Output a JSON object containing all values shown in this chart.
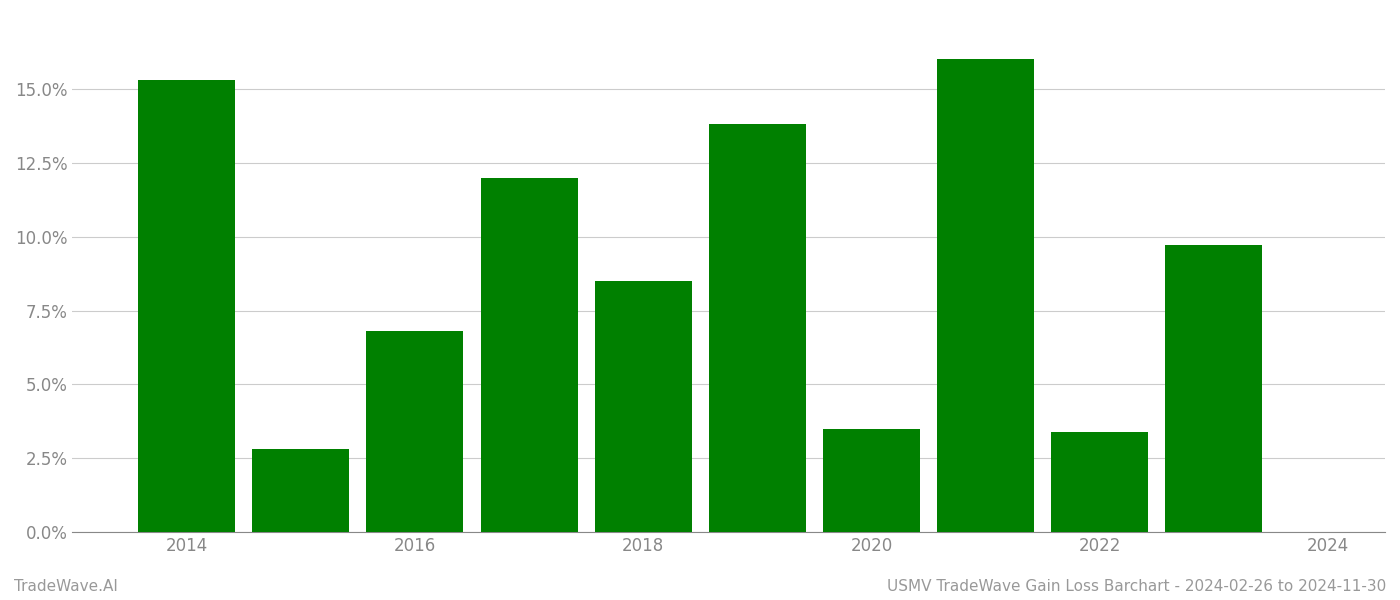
{
  "years": [
    2014,
    2015,
    2016,
    2017,
    2018,
    2019,
    2020,
    2021,
    2022,
    2023
  ],
  "values": [
    0.153,
    0.028,
    0.068,
    0.12,
    0.085,
    0.138,
    0.035,
    0.16,
    0.034,
    0.097
  ],
  "bar_color": "#008000",
  "background_color": "#ffffff",
  "grid_color": "#cccccc",
  "ylabel_color": "#888888",
  "xlabel_color": "#888888",
  "footer_color": "#999999",
  "ylim": [
    0,
    0.175
  ],
  "yticks": [
    0.0,
    0.025,
    0.05,
    0.075,
    0.1,
    0.125,
    0.15
  ],
  "xtick_labels": [
    "2014",
    "2016",
    "2018",
    "2020",
    "2022",
    "2024"
  ],
  "xtick_positions": [
    2014,
    2016,
    2018,
    2020,
    2022,
    2024
  ],
  "xlim": [
    2013.0,
    2024.5
  ],
  "footer_left": "TradeWave.AI",
  "footer_right": "USMV TradeWave Gain Loss Barchart - 2024-02-26 to 2024-11-30",
  "bar_width": 0.85
}
